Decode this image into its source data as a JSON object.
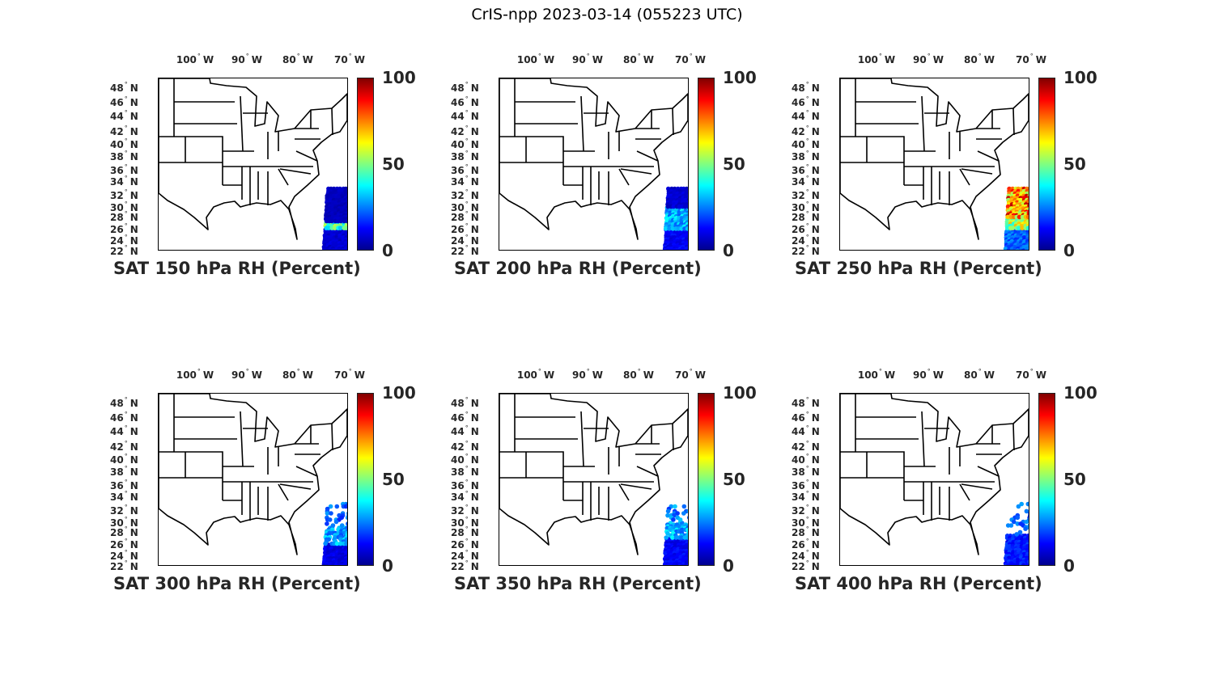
{
  "figure_title": "CrIS-npp 2023-03-14 (055223 UTC)",
  "colors": {
    "state_lines": "#000000",
    "frame": "#000000",
    "text": "#262626"
  },
  "chart_data": {
    "type": "map",
    "colormap": "jet",
    "lon_ticks": [
      "100",
      "90",
      "80",
      "70"
    ],
    "lon_suffix": "W",
    "lat_ticks": [
      "48",
      "46",
      "44",
      "42",
      "40",
      "38",
      "36",
      "34",
      "32",
      "30",
      "28",
      "26",
      "24",
      "22"
    ],
    "lat_suffix": "N",
    "colorbar": {
      "range": [
        0,
        100
      ],
      "ticks": [
        "100",
        "50",
        "0"
      ]
    },
    "panels": [
      {
        "title": "SAT 150 hPa RH (Percent)",
        "swath": [
          {
            "lat": [
              22,
              26
            ],
            "rh": 8,
            "coverage": 1
          },
          {
            "lat": [
              26,
              27.3
            ],
            "rh": 45,
            "coverage": 1
          },
          {
            "lat": [
              27.3,
              33
            ],
            "rh": 6,
            "coverage": 1
          }
        ]
      },
      {
        "title": "SAT 200 hPa RH (Percent)",
        "swath": [
          {
            "lat": [
              22,
              26
            ],
            "rh": 12,
            "coverage": 1
          },
          {
            "lat": [
              26,
              30
            ],
            "rh": 30,
            "coverage": 1
          },
          {
            "lat": [
              30,
              33
            ],
            "rh": 8,
            "coverage": 1
          }
        ]
      },
      {
        "title": "SAT 250 hPa RH (Percent)",
        "swath": [
          {
            "lat": [
              22,
              26
            ],
            "rh": 22,
            "coverage": 1
          },
          {
            "lat": [
              26,
              28
            ],
            "rh": 55,
            "coverage": 1
          },
          {
            "lat": [
              28,
              33
            ],
            "rh": 74,
            "coverage": 1
          }
        ]
      },
      {
        "title": "SAT 300 hPa RH (Percent)",
        "swath": [
          {
            "lat": [
              22,
              26
            ],
            "rh": 10,
            "coverage": 1
          },
          {
            "lat": [
              26,
              29
            ],
            "rh": 28,
            "coverage": 0.8
          },
          {
            "lat": [
              29,
              33
            ],
            "rh": 22,
            "coverage": 0.35
          }
        ]
      },
      {
        "title": "SAT 350 hPa RH (Percent)",
        "swath": [
          {
            "lat": [
              22,
              27
            ],
            "rh": 12,
            "coverage": 1
          },
          {
            "lat": [
              27,
              30
            ],
            "rh": 30,
            "coverage": 0.6
          },
          {
            "lat": [
              30,
              33
            ],
            "rh": 25,
            "coverage": 0.3
          }
        ]
      },
      {
        "title": "SAT 400 hPa RH (Percent)",
        "swath": [
          {
            "lat": [
              22,
              27.5
            ],
            "rh": 15,
            "coverage": 0.9
          },
          {
            "lat": [
              27.5,
              33
            ],
            "rh": 22,
            "coverage": 0.2
          }
        ]
      }
    ]
  }
}
